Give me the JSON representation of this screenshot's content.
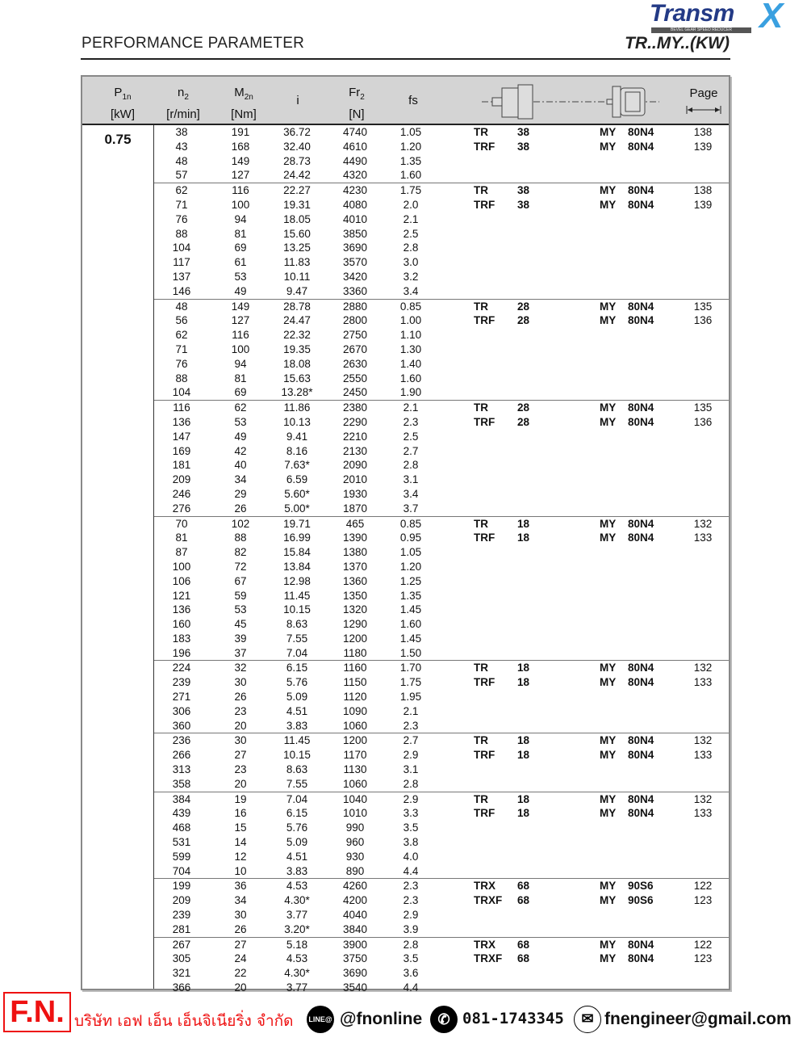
{
  "header": {
    "title": "PERFORMANCE PARAMETER",
    "series": "TR..MY..(KW)",
    "logo_text": "Transmax",
    "logo_tagline": "BEVEL GEAR SPEED REDUCER"
  },
  "columns": {
    "p1n": "P",
    "p1n_sub": "1n",
    "p1n_unit": "[kW]",
    "n2": "n",
    "n2_sub": "2",
    "n2_unit": "[r/min]",
    "m2n": "M",
    "m2n_sub": "2n",
    "m2n_unit": "[Nm]",
    "i": "i",
    "fr2": "Fr",
    "fr2_sub": "2",
    "fr2_unit": "[N]",
    "fs": "fs",
    "page": "Page"
  },
  "power": "0.75",
  "groups": [
    {
      "rows": [
        [
          "38",
          "191",
          "36.72",
          "4740",
          "1.05"
        ],
        [
          "43",
          "168",
          "32.40",
          "4610",
          "1.20"
        ],
        [
          "48",
          "149",
          "28.73",
          "4490",
          "1.35"
        ],
        [
          "57",
          "127",
          "24.42",
          "4320",
          "1.60"
        ]
      ],
      "models": [
        [
          "TR",
          "38",
          "MY",
          "80N4",
          "138"
        ],
        [
          "TRF",
          "38",
          "MY",
          "80N4",
          "139"
        ]
      ]
    },
    {
      "rows": [
        [
          "62",
          "116",
          "22.27",
          "4230",
          "1.75"
        ],
        [
          "71",
          "100",
          "19.31",
          "4080",
          "2.0"
        ],
        [
          "76",
          "94",
          "18.05",
          "4010",
          "2.1"
        ],
        [
          "88",
          "81",
          "15.60",
          "3850",
          "2.5"
        ],
        [
          "104",
          "69",
          "13.25",
          "3690",
          "2.8"
        ],
        [
          "117",
          "61",
          "11.83",
          "3570",
          "3.0"
        ],
        [
          "137",
          "53",
          "10.11",
          "3420",
          "3.2"
        ],
        [
          "146",
          "49",
          "9.47",
          "3360",
          "3.4"
        ]
      ],
      "models": [
        [
          "TR",
          "38",
          "MY",
          "80N4",
          "138"
        ],
        [
          "TRF",
          "38",
          "MY",
          "80N4",
          "139"
        ]
      ]
    },
    {
      "rows": [
        [
          "48",
          "149",
          "28.78",
          "2880",
          "0.85"
        ],
        [
          "56",
          "127",
          "24.47",
          "2800",
          "1.00"
        ],
        [
          "62",
          "116",
          "22.32",
          "2750",
          "1.10"
        ],
        [
          "71",
          "100",
          "19.35",
          "2670",
          "1.30"
        ],
        [
          "76",
          "94",
          "18.08",
          "2630",
          "1.40"
        ],
        [
          "88",
          "81",
          "15.63",
          "2550",
          "1.60"
        ],
        [
          "104",
          "69",
          "13.28*",
          "2450",
          "1.90"
        ]
      ],
      "models": [
        [
          "TR",
          "28",
          "MY",
          "80N4",
          "135"
        ],
        [
          "TRF",
          "28",
          "MY",
          "80N4",
          "136"
        ]
      ]
    },
    {
      "rows": [
        [
          "116",
          "62",
          "11.86",
          "2380",
          "2.1"
        ],
        [
          "136",
          "53",
          "10.13",
          "2290",
          "2.3"
        ],
        [
          "147",
          "49",
          "9.41",
          "2210",
          "2.5"
        ],
        [
          "169",
          "42",
          "8.16",
          "2130",
          "2.7"
        ],
        [
          "181",
          "40",
          "7.63*",
          "2090",
          "2.8"
        ],
        [
          "209",
          "34",
          "6.59",
          "2010",
          "3.1"
        ],
        [
          "246",
          "29",
          "5.60*",
          "1930",
          "3.4"
        ],
        [
          "276",
          "26",
          "5.00*",
          "1870",
          "3.7"
        ]
      ],
      "models": [
        [
          "TR",
          "28",
          "MY",
          "80N4",
          "135"
        ],
        [
          "TRF",
          "28",
          "MY",
          "80N4",
          "136"
        ]
      ]
    },
    {
      "rows": [
        [
          "70",
          "102",
          "19.71",
          "465",
          "0.85"
        ],
        [
          "81",
          "88",
          "16.99",
          "1390",
          "0.95"
        ],
        [
          "87",
          "82",
          "15.84",
          "1380",
          "1.05"
        ],
        [
          "100",
          "72",
          "13.84",
          "1370",
          "1.20"
        ],
        [
          "106",
          "67",
          "12.98",
          "1360",
          "1.25"
        ],
        [
          "121",
          "59",
          "11.45",
          "1350",
          "1.35"
        ],
        [
          "136",
          "53",
          "10.15",
          "1320",
          "1.45"
        ],
        [
          "160",
          "45",
          "8.63",
          "1290",
          "1.60"
        ],
        [
          "183",
          "39",
          "7.55",
          "1200",
          "1.45"
        ],
        [
          "196",
          "37",
          "7.04",
          "1180",
          "1.50"
        ]
      ],
      "models": [
        [
          "TR",
          "18",
          "MY",
          "80N4",
          "132"
        ],
        [
          "TRF",
          "18",
          "MY",
          "80N4",
          "133"
        ]
      ]
    },
    {
      "rows": [
        [
          "224",
          "32",
          "6.15",
          "1160",
          "1.70"
        ],
        [
          "239",
          "30",
          "5.76",
          "1150",
          "1.75"
        ],
        [
          "271",
          "26",
          "5.09",
          "1120",
          "1.95"
        ],
        [
          "306",
          "23",
          "4.51",
          "1090",
          "2.1"
        ],
        [
          "360",
          "20",
          "3.83",
          "1060",
          "2.3"
        ]
      ],
      "models": [
        [
          "TR",
          "18",
          "MY",
          "80N4",
          "132"
        ],
        [
          "TRF",
          "18",
          "MY",
          "80N4",
          "133"
        ]
      ]
    },
    {
      "rows": [
        [
          "236",
          "30",
          "11.45",
          "1200",
          "2.7"
        ],
        [
          "266",
          "27",
          "10.15",
          "1170",
          "2.9"
        ],
        [
          "313",
          "23",
          "8.63",
          "1130",
          "3.1"
        ],
        [
          "358",
          "20",
          "7.55",
          "1060",
          "2.8"
        ]
      ],
      "models": [
        [
          "TR",
          "18",
          "MY",
          "80N4",
          "132"
        ],
        [
          "TRF",
          "18",
          "MY",
          "80N4",
          "133"
        ]
      ]
    },
    {
      "rows": [
        [
          "384",
          "19",
          "7.04",
          "1040",
          "2.9"
        ],
        [
          "439",
          "16",
          "6.15",
          "1010",
          "3.3"
        ],
        [
          "468",
          "15",
          "5.76",
          "990",
          "3.5"
        ],
        [
          "531",
          "14",
          "5.09",
          "960",
          "3.8"
        ],
        [
          "599",
          "12",
          "4.51",
          "930",
          "4.0"
        ],
        [
          "704",
          "10",
          "3.83",
          "890",
          "4.4"
        ]
      ],
      "models": [
        [
          "TR",
          "18",
          "MY",
          "80N4",
          "132"
        ],
        [
          "TRF",
          "18",
          "MY",
          "80N4",
          "133"
        ]
      ]
    },
    {
      "rows": [
        [
          "199",
          "36",
          "4.53",
          "4260",
          "2.3"
        ],
        [
          "209",
          "34",
          "4.30*",
          "4200",
          "2.3"
        ],
        [
          "239",
          "30",
          "3.77",
          "4040",
          "2.9"
        ],
        [
          "281",
          "26",
          "3.20*",
          "3840",
          "3.9"
        ]
      ],
      "models": [
        [
          "TRX",
          "68",
          "MY",
          "90S6",
          "122"
        ],
        [
          "TRXF",
          "68",
          "MY",
          "90S6",
          "123"
        ]
      ]
    },
    {
      "rows": [
        [
          "267",
          "27",
          "5.18",
          "3900",
          "2.8"
        ],
        [
          "305",
          "24",
          "4.53",
          "3750",
          "3.5"
        ],
        [
          "321",
          "22",
          "4.30*",
          "3690",
          "3.6"
        ],
        [
          "366",
          "20",
          "3.77",
          "3540",
          "4.4"
        ]
      ],
      "models": [
        [
          "TRX",
          "68",
          "MY",
          "80N4",
          "122"
        ],
        [
          "TRXF",
          "68",
          "MY",
          "80N4",
          "123"
        ]
      ]
    }
  ],
  "footer": {
    "logo": "F.N.",
    "company": "บริษัท เอฟ เอ็น เอ็นจิเนียริ่ง จำกัด",
    "line_icon": "LINE@",
    "line_id": "@fnonline",
    "phone_icon": "phone-icon",
    "phone": "081-1743345",
    "email_icon": "mail-icon",
    "email": "fnengineer@gmail.com"
  }
}
